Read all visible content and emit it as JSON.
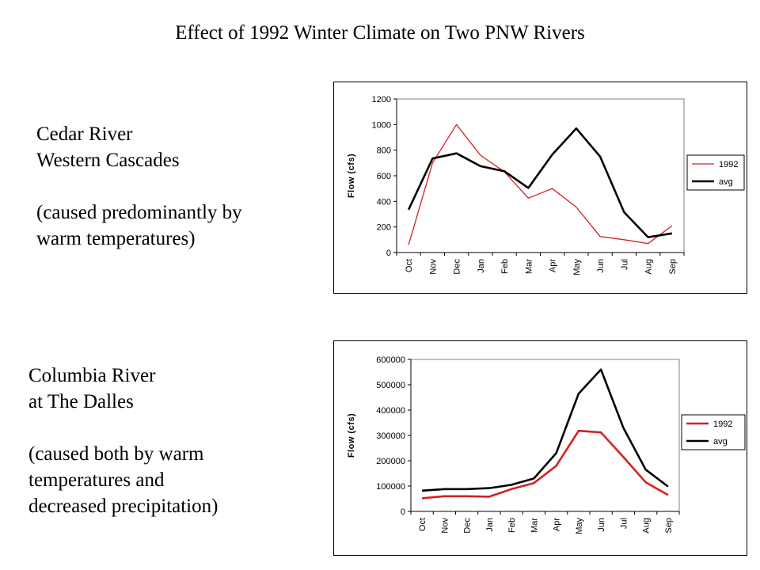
{
  "page": {
    "title": "Effect of 1992 Winter Climate on Two PNW Rivers"
  },
  "captions": [
    {
      "name": "Cedar River",
      "location": "Western Cascades",
      "note_line1": "(caused predominantly by",
      "note_line2": "warm temperatures)",
      "note_line3": ""
    },
    {
      "name": "Columbia River",
      "location": "at The Dalles",
      "note_line1": "(caused both by warm",
      "note_line2": "temperatures and",
      "note_line3": "decreased precipitation)"
    }
  ],
  "chart_data": [
    {
      "type": "line",
      "river": "Cedar River",
      "categories": [
        "Oct",
        "Nov",
        "Dec",
        "Jan",
        "Feb",
        "Mar",
        "Apr",
        "May",
        "Jun",
        "Jul",
        "Aug",
        "Sep"
      ],
      "series": [
        {
          "name": "1992",
          "color": "#d42020",
          "values": [
            60,
            700,
            1000,
            760,
            630,
            425,
            500,
            355,
            125,
            100,
            70,
            210
          ]
        },
        {
          "name": "avg",
          "color": "#000000",
          "values": [
            335,
            735,
            775,
            675,
            635,
            505,
            765,
            970,
            750,
            315,
            120,
            150
          ]
        }
      ],
      "ylabel": "Flow (cfs)",
      "ylim": [
        0,
        1200
      ],
      "yticks": [
        0,
        200,
        400,
        600,
        800,
        1000,
        1200
      ],
      "grid": false,
      "legend": "right"
    },
    {
      "type": "line",
      "river": "Columbia River",
      "categories": [
        "Oct",
        "Nov",
        "Dec",
        "Jan",
        "Feb",
        "Mar",
        "Apr",
        "May",
        "Jun",
        "Jul",
        "Aug",
        "Sep"
      ],
      "series": [
        {
          "name": "1992",
          "color": "#d42020",
          "values": [
            52000,
            60000,
            60000,
            58000,
            88000,
            112000,
            180000,
            318000,
            312000,
            215000,
            115000,
            65000
          ]
        },
        {
          "name": "avg",
          "color": "#000000",
          "values": [
            82000,
            88000,
            88000,
            92000,
            105000,
            130000,
            230000,
            465000,
            560000,
            330000,
            165000,
            98000
          ]
        }
      ],
      "ylabel": "Flow (cfs)",
      "ylim": [
        0,
        600000
      ],
      "yticks": [
        0,
        100000,
        200000,
        300000,
        400000,
        500000,
        600000
      ],
      "grid": false,
      "legend": "right"
    }
  ]
}
